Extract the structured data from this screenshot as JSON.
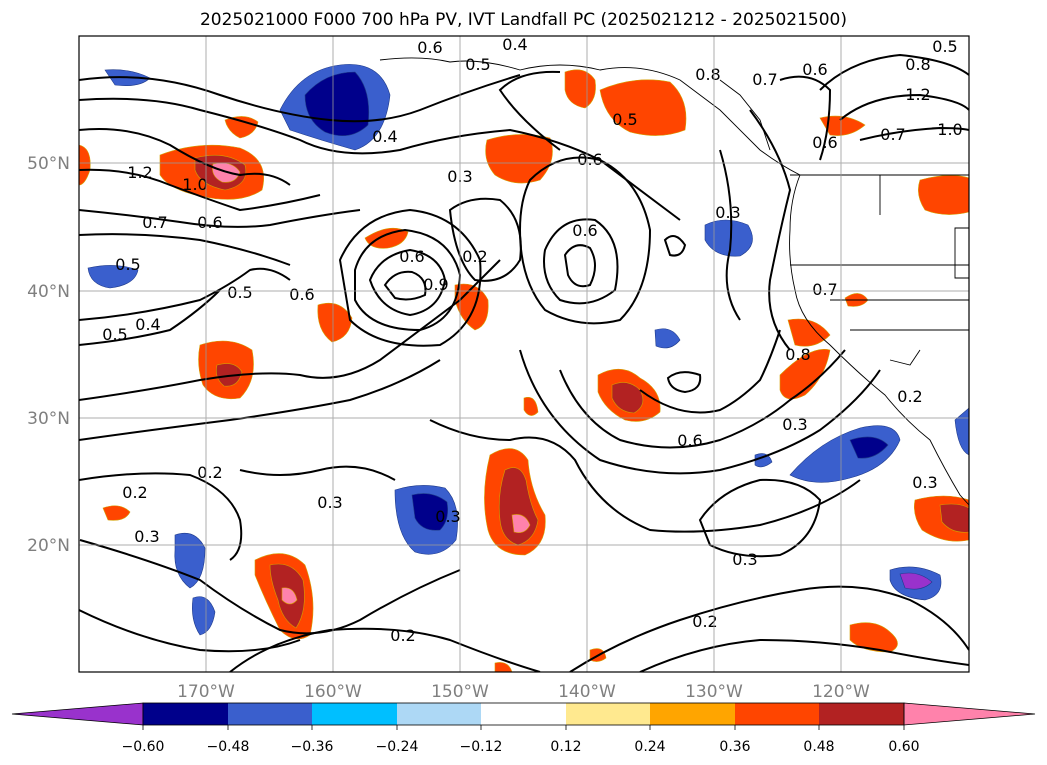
{
  "title": "2025021000 F000 700 hPa PV, IVT Landfall PC (2025021212 - 2025021500)",
  "map": {
    "lon_ticks": [
      "170°W",
      "160°W",
      "150°W",
      "140°W",
      "130°W",
      "120°W"
    ],
    "lat_ticks": [
      "50°N",
      "40°N",
      "30°N",
      "20°N"
    ],
    "axis_color": "#7f7f7f",
    "grid": true,
    "coastline": true
  },
  "contours": {
    "labels": [
      "0.6",
      "0.5",
      "0.4",
      "0.8",
      "0.7",
      "0.6",
      "1.0",
      "1.2",
      "0.5",
      "0.8",
      "0.7",
      "1.2",
      "1.0",
      "0.7",
      "0.6",
      "0.4",
      "0.3",
      "0.6",
      "0.6",
      "0.2",
      "0.6",
      "0.6",
      "0.5",
      "0.9",
      "0.5",
      "0.4",
      "0.5",
      "0.2",
      "0.2",
      "0.3",
      "0.3",
      "0.3",
      "0.3",
      "0.6",
      "0.7",
      "0.8",
      "0.3",
      "0.2",
      "0.3",
      "0.3",
      "0.2",
      "0.2",
      "0.5",
      "0.6"
    ]
  },
  "colorbar": {
    "tick_labels": [
      "−0.60",
      "−0.48",
      "−0.36",
      "−0.24",
      "−0.12",
      "0.12",
      "0.24",
      "0.36",
      "0.48",
      "0.60"
    ],
    "colors": [
      "#9932cc",
      "#00008b",
      "#3a5fcd",
      "#00bfff",
      "#add8f5",
      "#ffffff",
      "#ffe98f",
      "#ffa500",
      "#ff4500",
      "#b22222",
      "#ff82ab"
    ]
  }
}
